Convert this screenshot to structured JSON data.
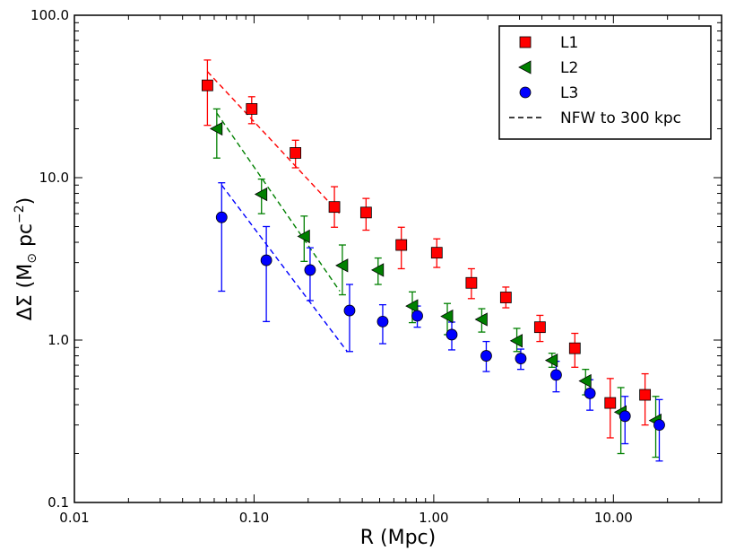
{
  "chart_data": {
    "type": "scatter",
    "title": "",
    "xlabel": "R (Mpc)",
    "ylabel": "ΔΣ (M⊙ pc⁻²)",
    "ylabel_parts": {
      "prefix": "ΔΣ (M",
      "sun": "⊙",
      "mid": " pc",
      "exp": "−2",
      "suffix": ")"
    },
    "xscale": "log",
    "yscale": "log",
    "xlim": [
      0.01,
      40
    ],
    "ylim": [
      0.1,
      100
    ],
    "x_ticks": [
      0.01,
      0.1,
      1,
      10
    ],
    "x_tick_labels": [
      "0.01",
      "0.10",
      "1.00",
      "10.00"
    ],
    "y_ticks": [
      0.1,
      1,
      10,
      100
    ],
    "y_tick_labels": [
      "0.1",
      "1.0",
      "10.0",
      "100.0"
    ],
    "legend_position": "top-right",
    "series": [
      {
        "name": "L1",
        "marker": "square",
        "color": "#ff0000",
        "x": [
          0.055,
          0.097,
          0.17,
          0.28,
          0.42,
          0.66,
          1.04,
          1.62,
          2.52,
          3.9,
          6.1,
          9.6,
          15.0
        ],
        "y": [
          37.0,
          26.5,
          14.2,
          6.6,
          6.1,
          3.85,
          3.45,
          2.25,
          1.83,
          1.2,
          0.89,
          0.41,
          0.46
        ],
        "yerr_low": [
          21.0,
          21.5,
          11.5,
          4.95,
          4.75,
          2.75,
          2.8,
          1.8,
          1.58,
          0.98,
          0.68,
          0.25,
          0.3
        ],
        "yerr_high": [
          53.0,
          31.5,
          17.0,
          8.8,
          7.45,
          4.95,
          4.2,
          2.75,
          2.12,
          1.42,
          1.1,
          0.58,
          0.62
        ]
      },
      {
        "name": "L2",
        "marker": "triangle-left",
        "color": "#008000",
        "x": [
          0.062,
          0.11,
          0.19,
          0.31,
          0.49,
          0.76,
          1.19,
          1.85,
          2.9,
          4.55,
          7.0,
          11.0,
          17.2
        ],
        "y": [
          20.0,
          7.9,
          4.35,
          2.88,
          2.7,
          1.62,
          1.4,
          1.34,
          0.99,
          0.75,
          0.56,
          0.36,
          0.32
        ],
        "yerr_low": [
          13.2,
          6.0,
          3.05,
          1.9,
          2.2,
          1.28,
          1.08,
          1.12,
          0.85,
          0.68,
          0.46,
          0.2,
          0.19
        ],
        "yerr_high": [
          26.5,
          9.8,
          5.8,
          3.85,
          3.2,
          1.98,
          1.68,
          1.56,
          1.18,
          0.83,
          0.66,
          0.51,
          0.45
        ]
      },
      {
        "name": "L3",
        "marker": "circle",
        "color": "#0000ff",
        "x": [
          0.066,
          0.117,
          0.205,
          0.34,
          0.52,
          0.81,
          1.26,
          1.96,
          3.05,
          4.8,
          7.4,
          11.6,
          18.0
        ],
        "y": [
          5.7,
          3.1,
          2.7,
          1.52,
          1.3,
          1.41,
          1.08,
          0.8,
          0.77,
          0.61,
          0.47,
          0.34,
          0.3
        ],
        "yerr_low": [
          2.0,
          1.3,
          1.75,
          0.85,
          0.95,
          1.2,
          0.87,
          0.64,
          0.66,
          0.48,
          0.37,
          0.23,
          0.18
        ],
        "yerr_high": [
          9.3,
          5.0,
          3.7,
          2.2,
          1.65,
          1.62,
          1.29,
          0.98,
          0.88,
          0.74,
          0.57,
          0.45,
          0.43
        ]
      }
    ],
    "fit_lines": [
      {
        "name": "NFW to 300 kpc",
        "color": "#ff0000",
        "x": [
          0.055,
          0.3
        ],
        "y": [
          45.0,
          6.0
        ]
      },
      {
        "name": "NFW to 300 kpc",
        "color": "#008000",
        "x": [
          0.062,
          0.3
        ],
        "y": [
          25.0,
          2.0
        ]
      },
      {
        "name": "NFW to 300 kpc",
        "color": "#0000ff",
        "x": [
          0.066,
          0.33
        ],
        "y": [
          9.0,
          0.85
        ]
      }
    ],
    "legend": [
      {
        "label": "L1",
        "marker": "square",
        "color": "#ff0000"
      },
      {
        "label": "L2",
        "marker": "triangle-left",
        "color": "#008000"
      },
      {
        "label": "L3",
        "marker": "circle",
        "color": "#0000ff"
      },
      {
        "label": "NFW to 300 kpc",
        "marker": "dashed-line",
        "color": "#000000"
      }
    ]
  }
}
